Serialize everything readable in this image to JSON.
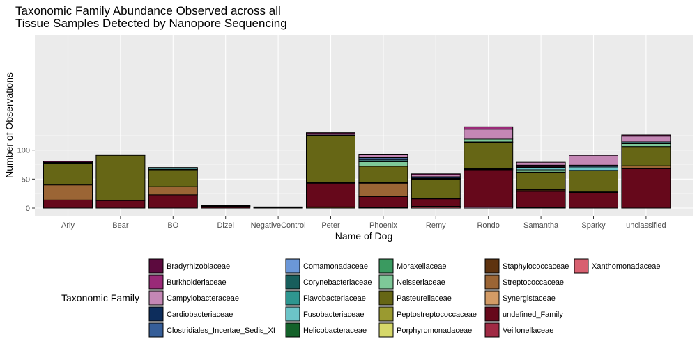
{
  "chart_data": {
    "type": "bar",
    "stacked": true,
    "title": [
      "Taxonomic Family Abundance Observed across all",
      "Tissue Samples Detected by Nanopore Sequencing"
    ],
    "xlabel": "Name of Dog",
    "ylabel": "Number of Observations",
    "ylim": [
      -8,
      146
    ],
    "yticks": [
      0,
      50,
      100
    ],
    "grid": true,
    "legend_position": "bottom",
    "legend_title": "Taxonomic Family",
    "categories": [
      "Arly",
      "Bear",
      "BO",
      "Dizel",
      "NegativeControl",
      "Peter",
      "Phoenix",
      "Remy",
      "Rondo",
      "Samantha",
      "Sparky",
      "unclassified"
    ],
    "families": [
      {
        "name": "Bradyrhizobiaceae",
        "color": "#5c0a3e"
      },
      {
        "name": "Burkholderiaceae",
        "color": "#9a2a78"
      },
      {
        "name": "Campylobacteraceae",
        "color": "#c487b5"
      },
      {
        "name": "Cardiobacteriaceae",
        "color": "#0d2d5c"
      },
      {
        "name": "Clostridiales_Incertae_Sedis_XI",
        "color": "#365e98"
      },
      {
        "name": "Comamonadaceae",
        "color": "#6b97d8"
      },
      {
        "name": "Corynebacteriaceae",
        "color": "#185e5c"
      },
      {
        "name": "Flavobacteriaceae",
        "color": "#2e9690"
      },
      {
        "name": "Fusobacteriaceae",
        "color": "#6cc4c8"
      },
      {
        "name": "Helicobacteraceae",
        "color": "#14622a"
      },
      {
        "name": "Moraxellaceae",
        "color": "#3a9a60"
      },
      {
        "name": "Neisseriaceae",
        "color": "#7ec898"
      },
      {
        "name": "Pasteurellaceae",
        "color": "#666615"
      },
      {
        "name": "Peptostreptococcaceae",
        "color": "#9a9a30"
      },
      {
        "name": "Porphyromonadaceae",
        "color": "#d6d86a"
      },
      {
        "name": "Staphylococcaceae",
        "color": "#5e3310"
      },
      {
        "name": "Streptococcaceae",
        "color": "#9b6535"
      },
      {
        "name": "Synergistaceae",
        "color": "#d39b66"
      },
      {
        "name": "undefined_Family",
        "color": "#66081b"
      },
      {
        "name": "Veillonellaceae",
        "color": "#a02a44"
      },
      {
        "name": "Xanthomonadaceae",
        "color": "#d86070"
      }
    ],
    "stacks": [
      {
        "category": "Arly",
        "segments": [
          {
            "family": "undefined_Family",
            "value": 14
          },
          {
            "family": "Streptococcaceae",
            "value": 26
          },
          {
            "family": "Pasteurellaceae",
            "value": 37
          },
          {
            "family": "Helicobacteraceae",
            "value": 1
          },
          {
            "family": "Clostridiales_Incertae_Sedis_XI",
            "value": 1
          },
          {
            "family": "Bradyrhizobiaceae",
            "value": 2
          }
        ]
      },
      {
        "category": "Bear",
        "segments": [
          {
            "family": "undefined_Family",
            "value": 13
          },
          {
            "family": "Pasteurellaceae",
            "value": 78
          },
          {
            "family": "Cardiobacteriaceae",
            "value": 1
          }
        ]
      },
      {
        "category": "BO",
        "segments": [
          {
            "family": "undefined_Family",
            "value": 23
          },
          {
            "family": "Streptococcaceae",
            "value": 14
          },
          {
            "family": "Pasteurellaceae",
            "value": 29
          },
          {
            "family": "Neisseriaceae",
            "value": 1
          },
          {
            "family": "Fusobacteriaceae",
            "value": 2
          },
          {
            "family": "Cardiobacteriaceae",
            "value": 1
          }
        ]
      },
      {
        "category": "Dizel",
        "segments": [
          {
            "family": "undefined_Family",
            "value": 3
          },
          {
            "family": "Pasteurellaceae",
            "value": 1
          },
          {
            "family": "Cardiobacteriaceae",
            "value": 1
          }
        ]
      },
      {
        "category": "NegativeControl",
        "segments": [
          {
            "family": "undefined_Family",
            "value": 1
          },
          {
            "family": "Clostridiales_Incertae_Sedis_XI",
            "value": 1
          }
        ]
      },
      {
        "category": "Peter",
        "segments": [
          {
            "family": "Staphylococcaceae",
            "value": 2
          },
          {
            "family": "undefined_Family",
            "value": 41
          },
          {
            "family": "Veillonellaceae",
            "value": 1
          },
          {
            "family": "Pasteurellaceae",
            "value": 81
          },
          {
            "family": "Neisseriaceae",
            "value": 1
          },
          {
            "family": "Campylobacteraceae",
            "value": 2
          },
          {
            "family": "Bradyrhizobiaceae",
            "value": 2
          }
        ]
      },
      {
        "category": "Phoenix",
        "segments": [
          {
            "family": "Staphylococcaceae",
            "value": 1
          },
          {
            "family": "undefined_Family",
            "value": 19
          },
          {
            "family": "Streptococcaceae",
            "value": 23
          },
          {
            "family": "Peptostreptococcaceae",
            "value": 1
          },
          {
            "family": "Pasteurellaceae",
            "value": 28
          },
          {
            "family": "Neisseriaceae",
            "value": 8
          },
          {
            "family": "Moraxellaceae",
            "value": 1
          },
          {
            "family": "Fusobacteriaceae",
            "value": 2
          },
          {
            "family": "Clostridiales_Incertae_Sedis_XI",
            "value": 2
          },
          {
            "family": "Comamonadaceae",
            "value": 2
          },
          {
            "family": "Campylobacteraceae",
            "value": 6
          }
        ]
      },
      {
        "category": "Remy",
        "segments": [
          {
            "family": "Xanthomonadaceae",
            "value": 3
          },
          {
            "family": "undefined_Family",
            "value": 13
          },
          {
            "family": "Helicobacteraceae",
            "value": 1
          },
          {
            "family": "Pasteurellaceae",
            "value": 32
          },
          {
            "family": "Peptostreptococcaceae",
            "value": 1
          },
          {
            "family": "Corynebacteriaceae",
            "value": 1
          },
          {
            "family": "Cardiobacteriaceae",
            "value": 2
          },
          {
            "family": "Burkholderiaceae",
            "value": 1
          },
          {
            "family": "Campylobacteraceae",
            "value": 3
          },
          {
            "family": "Bradyrhizobiaceae",
            "value": 2
          }
        ]
      },
      {
        "category": "Rondo",
        "segments": [
          {
            "family": "Campylobacteraceae",
            "value": 2
          },
          {
            "family": "undefined_Family",
            "value": 64
          },
          {
            "family": "Synergistaceae",
            "value": 1
          },
          {
            "family": "Streptococcaceae",
            "value": 1
          },
          {
            "family": "Staphylococcaceae",
            "value": 1
          },
          {
            "family": "Pasteurellaceae",
            "value": 44
          },
          {
            "family": "Moraxellaceae",
            "value": 1
          },
          {
            "family": "Neisseriaceae",
            "value": 5
          },
          {
            "family": "Clostridiales_Incertae_Sedis_XI",
            "value": 1
          },
          {
            "family": "Campylobacteraceae",
            "value": 16
          },
          {
            "family": "Burkholderiaceae",
            "value": 4
          }
        ]
      },
      {
        "category": "Samantha",
        "segments": [
          {
            "family": "Staphylococcaceae",
            "value": 1
          },
          {
            "family": "undefined_Family",
            "value": 28
          },
          {
            "family": "Veillonellaceae",
            "value": 1
          },
          {
            "family": "Staphylococcaceae",
            "value": 2
          },
          {
            "family": "Pasteurellaceae",
            "value": 29
          },
          {
            "family": "Corynebacteriaceae",
            "value": 1
          },
          {
            "family": "Neisseriaceae",
            "value": 4
          },
          {
            "family": "Fusobacteriaceae",
            "value": 4
          },
          {
            "family": "Clostridiales_Incertae_Sedis_XI",
            "value": 1
          },
          {
            "family": "Bradyrhizobiaceae",
            "value": 3
          },
          {
            "family": "Campylobacteraceae",
            "value": 5
          }
        ]
      },
      {
        "category": "Sparky",
        "segments": [
          {
            "family": "undefined_Family",
            "value": 26
          },
          {
            "family": "Cardiobacteriaceae",
            "value": 1
          },
          {
            "family": "Helicobacteraceae",
            "value": 1
          },
          {
            "family": "Pasteurellaceae",
            "value": 37
          },
          {
            "family": "Fusobacteriaceae",
            "value": 6
          },
          {
            "family": "Comamonadaceae",
            "value": 3
          },
          {
            "family": "Campylobacteraceae",
            "value": 17
          }
        ]
      },
      {
        "category": "unclassified",
        "segments": [
          {
            "family": "undefined_Family",
            "value": 68
          },
          {
            "family": "Streptococcaceae",
            "value": 5
          },
          {
            "family": "Pasteurellaceae",
            "value": 33
          },
          {
            "family": "Neisseriaceae",
            "value": 5
          },
          {
            "family": "Helicobacteraceae",
            "value": 1
          },
          {
            "family": "Fusobacteriaceae",
            "value": 2
          },
          {
            "family": "Campylobacteraceae",
            "value": 10
          },
          {
            "family": "Bradyrhizobiaceae",
            "value": 2
          }
        ]
      }
    ]
  }
}
